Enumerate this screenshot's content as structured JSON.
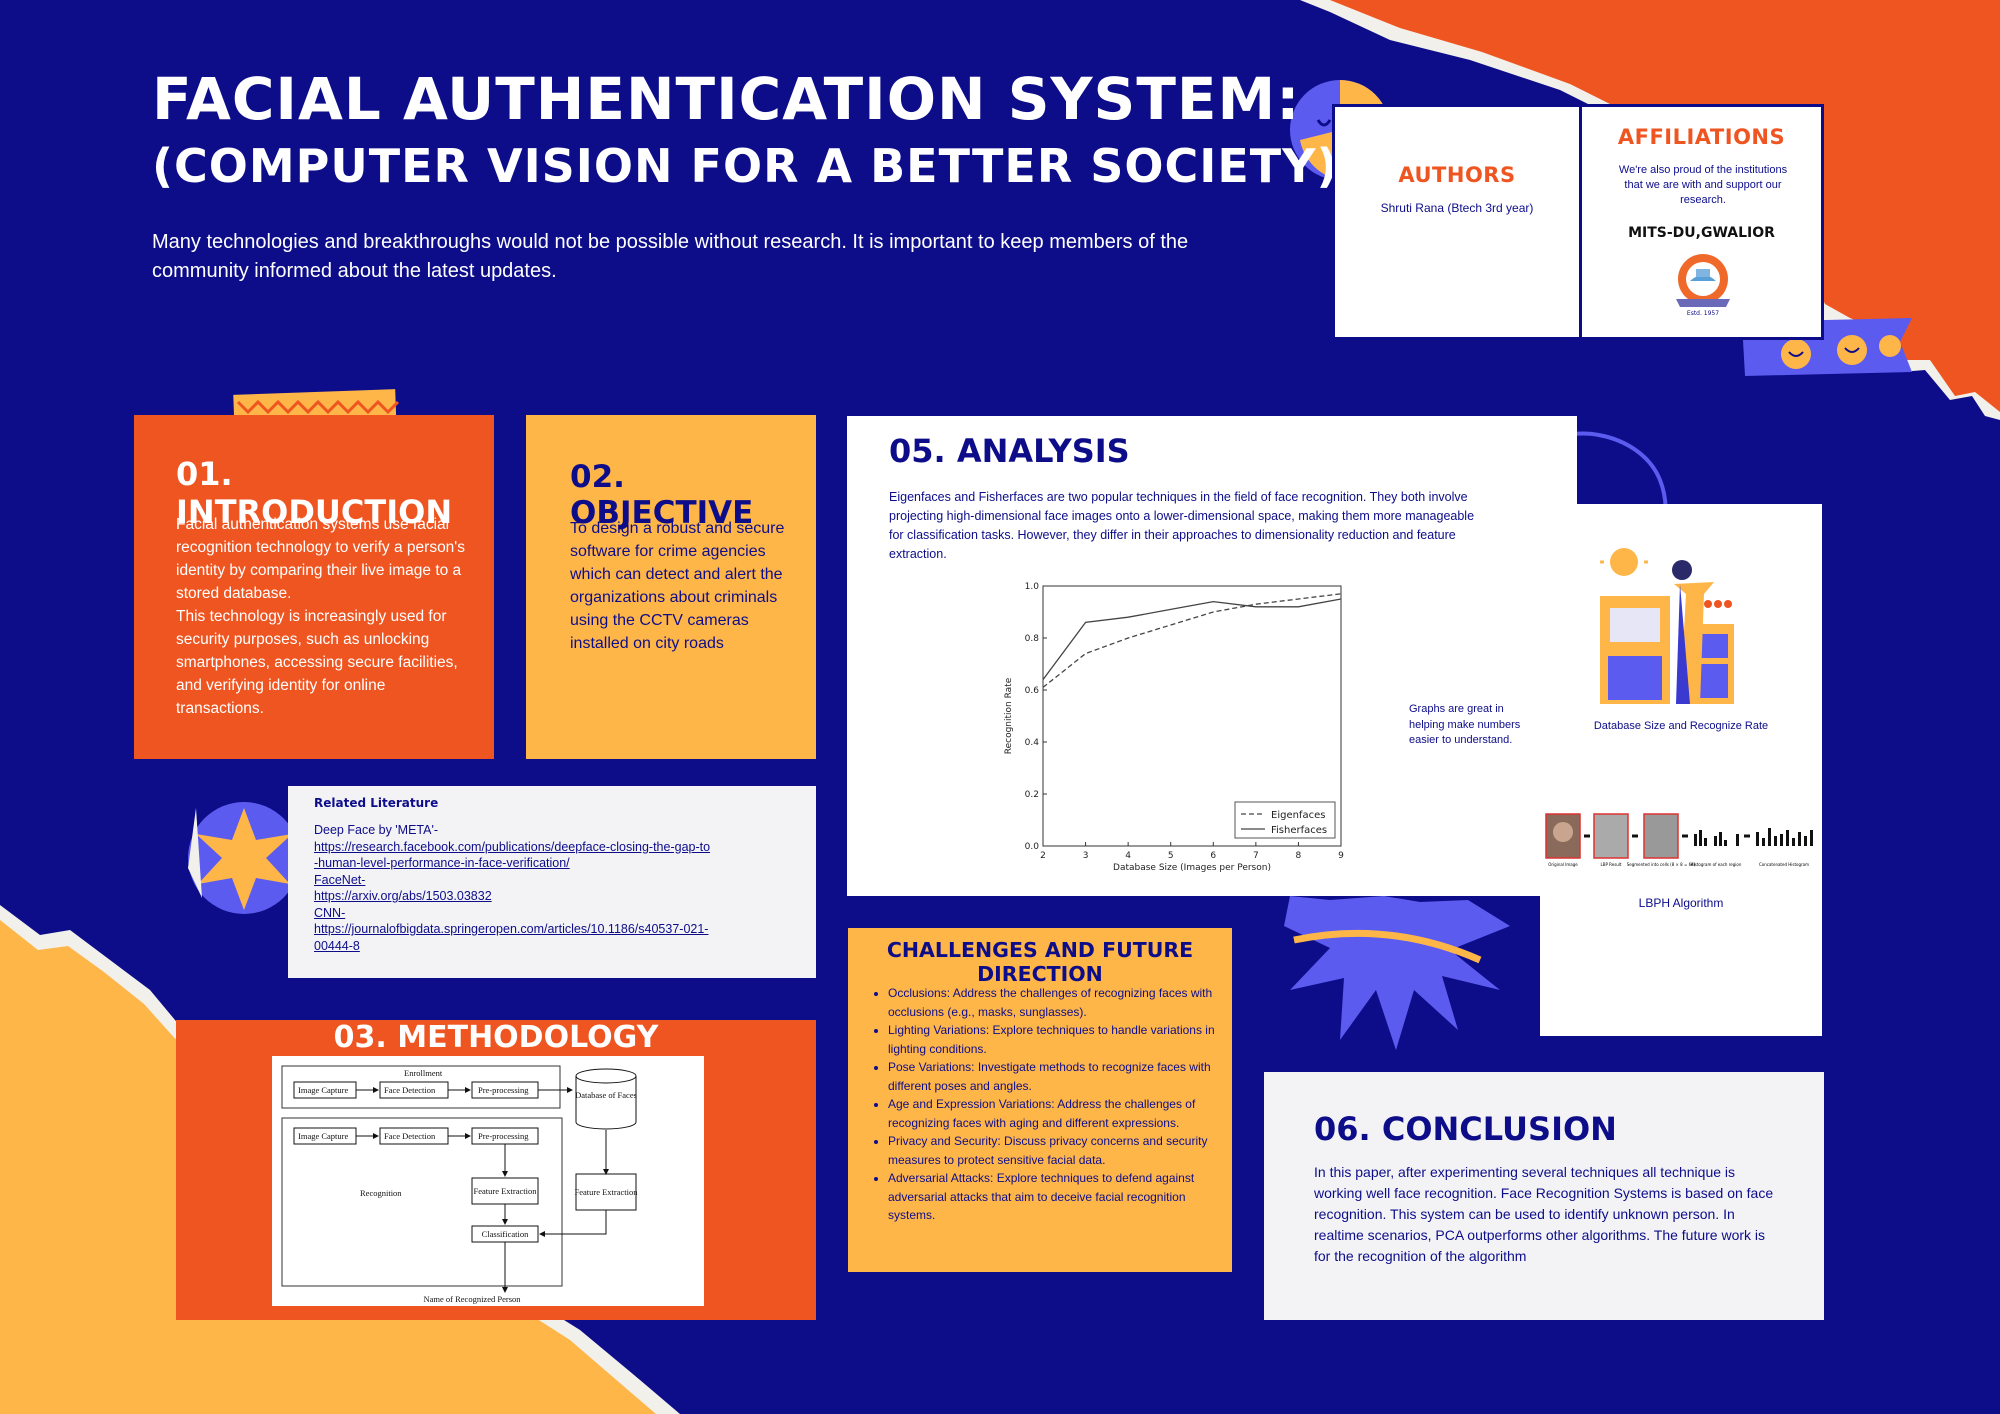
{
  "header": {
    "title_line1": "FACIAL AUTHENTICATION SYSTEM:",
    "title_line2": "(COMPUTER VISION FOR A BETTER SOCIETY)",
    "lead": "Many technologies and breakthroughs would not be possible without research. It is important to keep members of the community informed about the latest updates."
  },
  "authors": {
    "heading": "AUTHORS",
    "name": "Shruti Rana (Btech 3rd year)"
  },
  "affiliations": {
    "heading": "AFFILIATIONS",
    "text": "We're also proud of the institutions that we are with and support our research.",
    "institution": "MITS-DU,GWALIOR",
    "logo_text": "Estd. 1957"
  },
  "introduction": {
    "heading": "01. INTRODUCTION",
    "body": "Facial authentication systems use facial recognition technology to verify a person's identity by comparing their live image to a stored database.\n This technology is increasingly used for security purposes, such as unlocking smartphones, accessing secure facilities, and verifying identity for online transactions."
  },
  "objective": {
    "heading": "02. OBJECTIVE",
    "body": "To design a robust and secure software for crime agencies which can detect and alert the organizations about criminals using the CCTV cameras installed on city roads"
  },
  "literature": {
    "heading": "Related Literature",
    "items": [
      {
        "label": "Deep Face by 'META'-",
        "url": "https://research.facebook.com/publications/deepface-closing-the-gap-to-human-level-performance-in-face-verification/"
      },
      {
        "label": "FaceNet-",
        "url": "https://arxiv.org/abs/1503.03832"
      },
      {
        "label": "CNN-",
        "url": "https://journalofbigdata.springeropen.com/articles/10.1186/s40537-021-00444-8"
      }
    ]
  },
  "methodology": {
    "heading": "03. METHODOLOGY",
    "diagram": {
      "enrollment": "Enrollment",
      "recognition": "Recognition",
      "image_capture": "Image Capture",
      "face_detection": "Face Detection",
      "preprocessing": "Pre-processing",
      "database": "Database of Faces",
      "feature_extraction": "Feature Extraction",
      "classification": "Classification",
      "name": "Name of Recognized Person"
    }
  },
  "analysis": {
    "heading": "05. ANALYSIS",
    "body": "Eigenfaces and Fisherfaces are two popular techniques in the field of face recognition. They both involve projecting high-dimensional face images onto a lower-dimensional space, making them more manageable for classification tasks. However, they differ in their approaches to dimensionality reduction and feature extraction.",
    "note": "Graphs are great in helping make numbers easier to understand."
  },
  "chart_data": {
    "type": "line",
    "xlabel": "Database Size (Images per Person)",
    "ylabel": "Recognition Rate",
    "x": [
      2,
      3,
      4,
      5,
      6,
      7,
      8,
      9
    ],
    "xlim": [
      2,
      9
    ],
    "ylim": [
      0.0,
      1.0
    ],
    "xticks": [
      "2",
      "3",
      "4",
      "5",
      "6",
      "7",
      "8",
      "9"
    ],
    "yticks": [
      "0.0",
      "0.2",
      "0.4",
      "0.6",
      "0.8",
      "1.0"
    ],
    "legend_position": "bottom-right",
    "series": [
      {
        "name": "Eigenfaces",
        "style": "dashed",
        "values": [
          0.61,
          0.74,
          0.8,
          0.85,
          0.9,
          0.93,
          0.95,
          0.97
        ]
      },
      {
        "name": "Fisherfaces",
        "style": "solid",
        "values": [
          0.64,
          0.86,
          0.88,
          0.91,
          0.94,
          0.92,
          0.92,
          0.95
        ]
      }
    ]
  },
  "right_panel": {
    "caption1": "Database Size and Recognize Rate",
    "caption2": "LBPH Algorithm",
    "lbph_labels": [
      "Original Image",
      "LBP Result",
      "Segmented into cells (8 × 8 = 64)",
      "Histogram of each region",
      "Concatenated Histogram"
    ]
  },
  "challenges": {
    "heading": "CHALLENGES AND FUTURE DIRECTION",
    "items": [
      "Occlusions: Address the challenges of recognizing faces with occlusions (e.g., masks, sunglasses).",
      "Lighting Variations: Explore techniques to handle variations in lighting conditions.",
      "Pose Variations: Investigate methods to recognize faces with different poses and angles.",
      "Age and Expression Variations: Address the challenges of recognizing faces with aging and different expressions.",
      "Privacy and Security: Discuss privacy concerns and security measures to protect sensitive facial data.",
      "Adversarial Attacks: Explore techniques to defend against adversarial attacks that aim to deceive facial recognition systems."
    ]
  },
  "conclusion": {
    "heading": "06. CONCLUSION",
    "body": "In this paper, after experimenting several techniques all technique is working well face recognition. Face Recognition Systems is based on face recognition. This system can be used to identify unknown person. In realtime scenarios, PCA outperforms other algorithms. The future work is for the recognition of the algorithm"
  },
  "colors": {
    "background": "#0d0d8a",
    "orange": "#ef5521",
    "yellow": "#ffb648",
    "periwinkle": "#5b5bf0",
    "white": "#ffffff",
    "light_gray": "#f3f3f6"
  }
}
